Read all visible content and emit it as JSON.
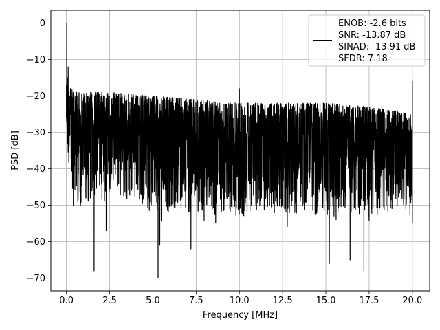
{
  "chart_data": {
    "type": "line",
    "title": "",
    "xlabel": "Frequency [MHz]",
    "ylabel": "PSD [dB]",
    "xlim": [
      -0.9,
      21.0
    ],
    "ylim": [
      -73.5,
      3.5
    ],
    "xticks": [
      0.0,
      2.5,
      5.0,
      7.5,
      10.0,
      12.5,
      15.0,
      17.5,
      20.0
    ],
    "xtick_labels": [
      "0.0",
      "2.5",
      "5.0",
      "7.5",
      "10.0",
      "12.5",
      "15.0",
      "17.5",
      "20.0"
    ],
    "yticks": [
      0,
      -10,
      -20,
      -30,
      -40,
      -50,
      -60,
      -70
    ],
    "ytick_labels": [
      "0",
      "−10",
      "−20",
      "−30",
      "−40",
      "−50",
      "−60",
      "−70"
    ],
    "grid": true,
    "legend_position": "top-right",
    "line_color": "#000000",
    "legend": [
      "ENOB: -2.6 bits",
      "SNR: -13.87 dB",
      "SINAD: -13.91 dB",
      "SFDR: 7.18"
    ],
    "series": [
      {
        "x_range": [
          0,
          20
        ],
        "description_points": [
          [
            0.0,
            -17
          ],
          [
            0.02,
            0
          ],
          [
            0.05,
            -15
          ],
          [
            0.1,
            -12
          ],
          [
            0.2,
            -20
          ],
          [
            0.4,
            -50
          ],
          [
            1.6,
            -68
          ],
          [
            2.3,
            -57
          ],
          [
            5.3,
            -70
          ],
          [
            5.4,
            -61
          ],
          [
            7.2,
            -62
          ],
          [
            10.0,
            -18
          ],
          [
            15.2,
            -66
          ],
          [
            16.4,
            -65
          ],
          [
            17.2,
            -68
          ],
          [
            20.0,
            -16
          ],
          [
            20.0,
            -55
          ]
        ],
        "upper_envelope": [
          [
            0.0,
            -17
          ],
          [
            0.5,
            -19
          ],
          [
            2.5,
            -19
          ],
          [
            5.0,
            -20
          ],
          [
            7.5,
            -21
          ],
          [
            10.0,
            -22
          ],
          [
            12.5,
            -22
          ],
          [
            15.0,
            -22
          ],
          [
            17.5,
            -23
          ],
          [
            20.0,
            -25
          ]
        ],
        "lower_envelope": [
          [
            0.0,
            -35
          ],
          [
            0.5,
            -50
          ],
          [
            2.5,
            -48
          ],
          [
            5.0,
            -52
          ],
          [
            7.5,
            -52
          ],
          [
            10.0,
            -53
          ],
          [
            12.5,
            -52
          ],
          [
            15.0,
            -53
          ],
          [
            17.5,
            -53
          ],
          [
            20.0,
            -50
          ]
        ]
      }
    ]
  }
}
